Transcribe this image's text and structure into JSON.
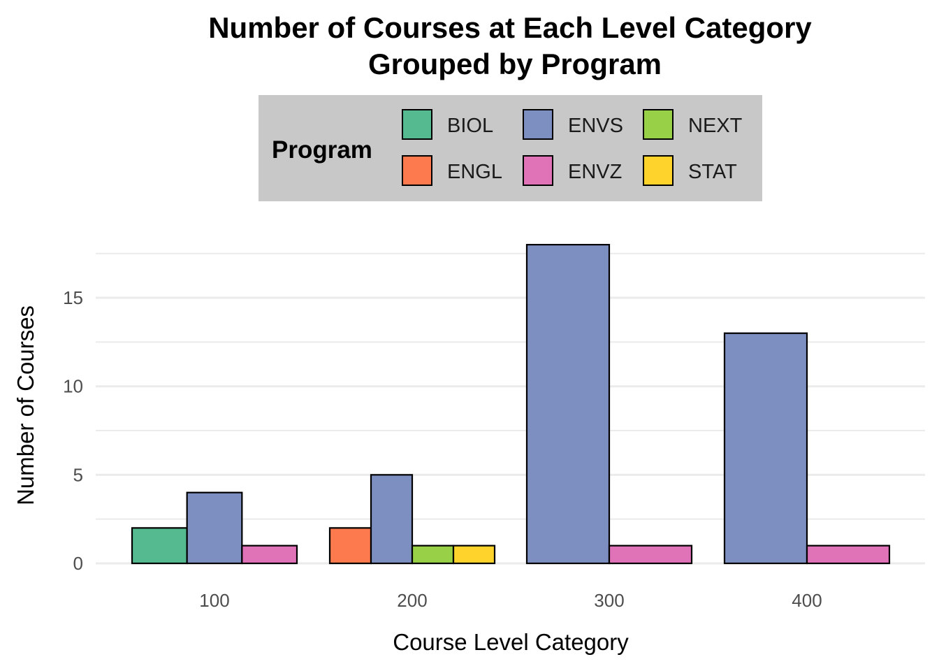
{
  "chart_data": {
    "type": "bar",
    "title": [
      "Number of Courses at Each Level Category",
      "Grouped by Program"
    ],
    "xlabel": "Course Level Category",
    "ylabel": "Number of Courses",
    "categories": [
      "100",
      "200",
      "300",
      "400"
    ],
    "ylim": [
      0,
      18
    ],
    "yticks": [
      0,
      5,
      10,
      15
    ],
    "grid": true,
    "legend": {
      "title": "Program",
      "placement": "top",
      "items": [
        "BIOL",
        "ENGL",
        "ENVS",
        "ENVZ",
        "NEXT",
        "STAT"
      ]
    },
    "series": [
      {
        "name": "BIOL",
        "color": "#56BA91",
        "values": [
          2,
          null,
          null,
          null
        ]
      },
      {
        "name": "ENGL",
        "color": "#FC7A4E",
        "values": [
          null,
          2,
          null,
          null
        ]
      },
      {
        "name": "ENVS",
        "color": "#7D8FC0",
        "values": [
          4,
          5,
          18,
          13
        ]
      },
      {
        "name": "ENVZ",
        "color": "#E072B8",
        "values": [
          1,
          null,
          1,
          1
        ]
      },
      {
        "name": "NEXT",
        "color": "#98D147",
        "values": [
          null,
          1,
          null,
          null
        ]
      },
      {
        "name": "STAT",
        "color": "#FDD32C",
        "values": [
          null,
          1,
          null,
          null
        ]
      }
    ]
  }
}
